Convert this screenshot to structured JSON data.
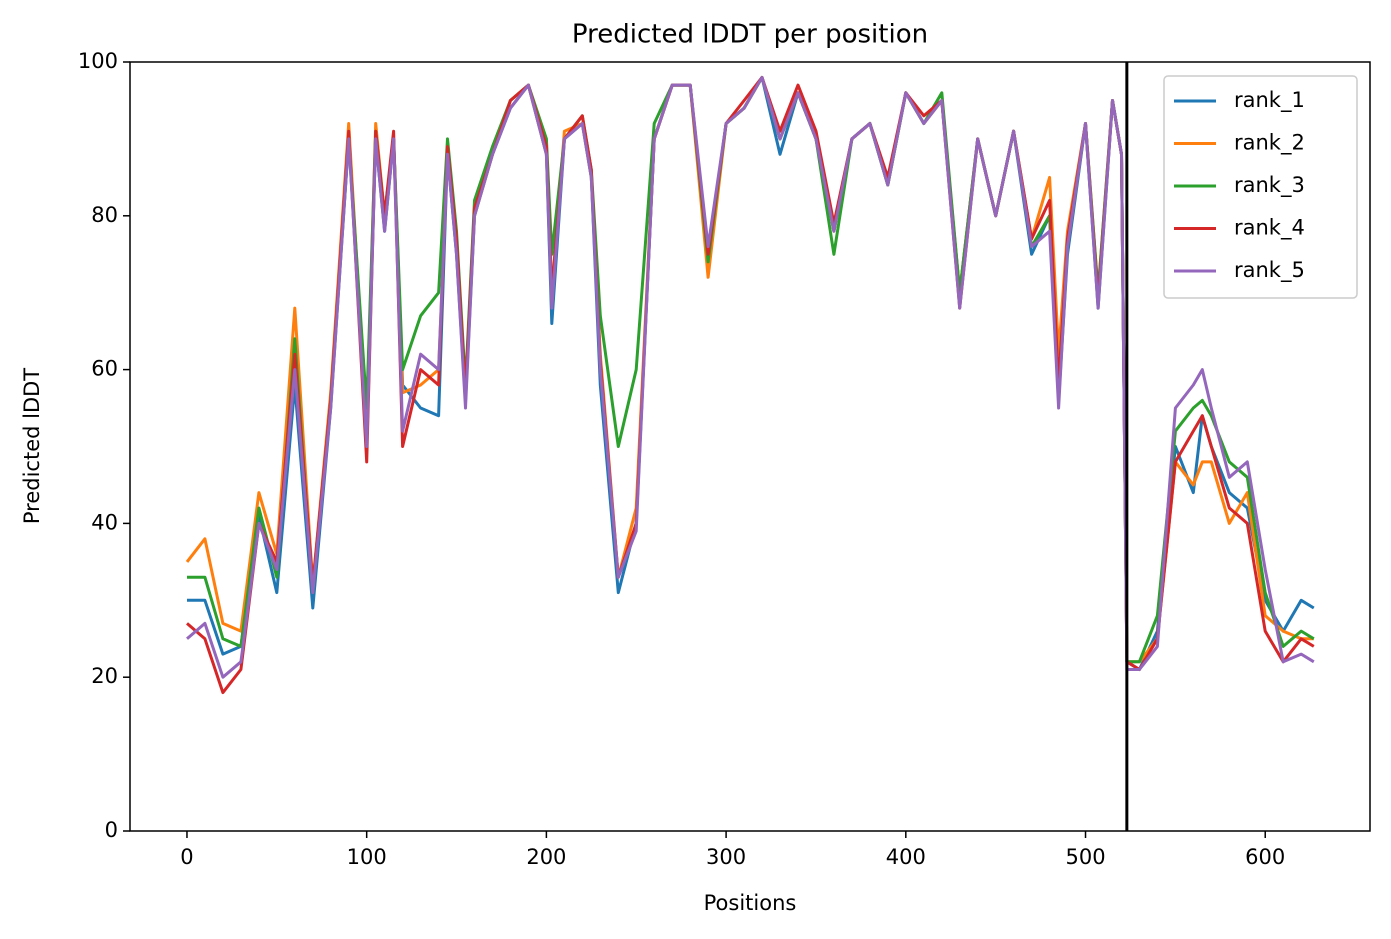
{
  "chart_data": {
    "type": "line",
    "title": "Predicted lDDT per position",
    "x_label": "Positions",
    "y_label": "Predicted lDDT",
    "x": [
      0,
      10,
      20,
      30,
      40,
      50,
      60,
      70,
      80,
      90,
      100,
      105,
      110,
      115,
      120,
      130,
      140,
      145,
      150,
      155,
      160,
      170,
      180,
      190,
      200,
      203,
      210,
      220,
      225,
      230,
      240,
      250,
      260,
      270,
      280,
      290,
      300,
      310,
      320,
      330,
      340,
      350,
      360,
      370,
      380,
      390,
      400,
      410,
      420,
      430,
      440,
      450,
      460,
      470,
      480,
      485,
      490,
      500,
      507,
      515,
      520,
      523,
      530,
      540,
      550,
      560,
      565,
      570,
      580,
      590,
      600,
      610,
      620,
      627
    ],
    "series": [
      {
        "name": "rank_1",
        "color": "#1f77b4",
        "values": [
          30,
          30,
          23,
          24,
          41,
          31,
          58,
          29,
          55,
          90,
          52,
          90,
          78,
          90,
          58,
          55,
          54,
          88,
          75,
          56,
          80,
          88,
          94,
          97,
          88,
          66,
          90,
          92,
          85,
          58,
          31,
          40,
          90,
          97,
          97,
          74,
          92,
          94,
          98,
          88,
          96,
          90,
          78,
          90,
          92,
          84,
          96,
          92,
          95,
          70,
          90,
          80,
          91,
          75,
          80,
          56,
          75,
          92,
          68,
          95,
          88,
          22,
          21,
          26,
          50,
          44,
          54,
          50,
          44,
          42,
          30,
          26,
          30,
          29
        ]
      },
      {
        "name": "rank_2",
        "color": "#ff7f0e",
        "values": [
          35,
          38,
          27,
          26,
          44,
          36,
          68,
          32,
          57,
          92,
          52,
          92,
          80,
          90,
          57,
          58,
          60,
          88,
          76,
          57,
          80,
          88,
          95,
          97,
          88,
          70,
          91,
          92,
          85,
          62,
          33,
          42,
          90,
          97,
          97,
          72,
          92,
          94,
          98,
          90,
          96,
          90,
          78,
          90,
          92,
          84,
          96,
          92,
          95,
          70,
          90,
          80,
          91,
          77,
          85,
          62,
          78,
          92,
          70,
          95,
          88,
          22,
          22,
          25,
          48,
          45,
          48,
          48,
          40,
          44,
          28,
          26,
          25,
          25
        ]
      },
      {
        "name": "rank_3",
        "color": "#2ca02c",
        "values": [
          33,
          33,
          25,
          24,
          42,
          33,
          64,
          31,
          56,
          90,
          55,
          91,
          80,
          90,
          60,
          67,
          70,
          90,
          78,
          58,
          82,
          89,
          95,
          97,
          90,
          75,
          90,
          93,
          86,
          67,
          50,
          60,
          92,
          97,
          97,
          74,
          92,
          94,
          98,
          90,
          96,
          90,
          75,
          90,
          92,
          84,
          96,
          92,
          96,
          70,
          90,
          80,
          91,
          76,
          80,
          58,
          76,
          92,
          70,
          95,
          88,
          22,
          22,
          28,
          52,
          55,
          56,
          54,
          48,
          46,
          31,
          24,
          26,
          25
        ]
      },
      {
        "name": "rank_4",
        "color": "#d62728",
        "values": [
          27,
          25,
          18,
          21,
          40,
          35,
          62,
          32,
          56,
          91,
          48,
          91,
          80,
          91,
          50,
          60,
          58,
          89,
          77,
          57,
          81,
          88,
          95,
          97,
          89,
          70,
          90,
          93,
          86,
          61,
          33,
          40,
          90,
          97,
          97,
          75,
          92,
          95,
          98,
          91,
          97,
          91,
          79,
          90,
          92,
          85,
          96,
          93,
          95,
          68,
          90,
          80,
          91,
          77,
          82,
          58,
          77,
          92,
          69,
          95,
          88,
          22,
          21,
          25,
          48,
          52,
          54,
          50,
          42,
          40,
          26,
          22,
          25,
          24
        ]
      },
      {
        "name": "rank_5",
        "color": "#9467bd",
        "values": [
          25,
          27,
          20,
          22,
          40,
          34,
          60,
          31,
          55,
          90,
          50,
          90,
          78,
          90,
          52,
          62,
          60,
          88,
          75,
          55,
          80,
          88,
          94,
          97,
          88,
          68,
          90,
          92,
          85,
          60,
          33,
          39,
          90,
          97,
          97,
          76,
          92,
          94,
          98,
          90,
          96,
          90,
          78,
          90,
          92,
          84,
          96,
          92,
          95,
          68,
          90,
          80,
          91,
          76,
          78,
          55,
          76,
          92,
          68,
          95,
          88,
          21,
          21,
          24,
          55,
          58,
          60,
          55,
          46,
          48,
          34,
          22,
          23,
          22
        ]
      }
    ],
    "xlim": [
      -31.7,
      658.3
    ],
    "xticks": [
      0,
      100,
      200,
      300,
      400,
      500,
      600
    ],
    "ylim": [
      0,
      100
    ],
    "yticks": [
      0,
      20,
      40,
      60,
      80,
      100
    ],
    "vline": 523,
    "legend": "upper right"
  }
}
